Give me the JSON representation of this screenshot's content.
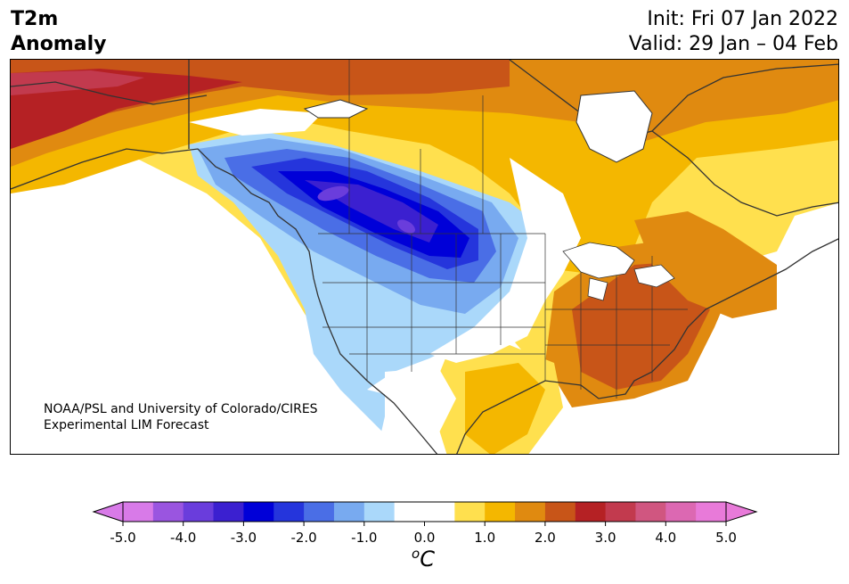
{
  "title": {
    "line1": "T2m",
    "line2": "Anomaly"
  },
  "forecast": {
    "init": "Init: Fri 07 Jan 2022",
    "valid": "Valid: 29 Jan – 04 Feb"
  },
  "credit": {
    "line1": "NOAA/PSL and University of Colorado/CIRES",
    "line2": "Experimental LIM Forecast"
  },
  "colorbar": {
    "unit_super": "o",
    "unit_base": "C",
    "ticks": [
      "-5.0",
      "-4.0",
      "-3.0",
      "-2.0",
      "-1.0",
      "0.0",
      "1.0",
      "2.0",
      "3.0",
      "4.0",
      "5.0"
    ],
    "under_color": "#d87ae8",
    "over_color": "#e87ad9",
    "colors": [
      "#d87ae8",
      "#9a55e0",
      "#6a3ddc",
      "#3b20d0",
      "#0000d8",
      "#2535dc",
      "#4a6ee6",
      "#78aaf0",
      "#aad8fa",
      "#ffffff",
      "#ffffff",
      "#ffe04e",
      "#f4b700",
      "#e08a10",
      "#c85518",
      "#b52124",
      "#c23a4e",
      "#d05680",
      "#dc68b2",
      "#e87ad9"
    ]
  }
}
